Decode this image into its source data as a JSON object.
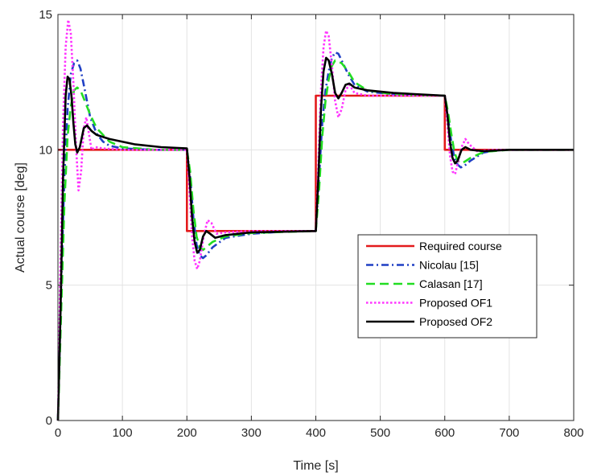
{
  "chart_data": {
    "type": "line",
    "xlabel": "Time [s]",
    "ylabel": "Actual course [deg]",
    "xlim": [
      0,
      800
    ],
    "ylim": [
      0,
      15
    ],
    "xticks": [
      0,
      100,
      200,
      300,
      400,
      500,
      600,
      700,
      800
    ],
    "yticks": [
      0,
      5,
      10,
      15
    ],
    "grid": true,
    "legend_position": "right",
    "series": [
      {
        "name": "Required course",
        "color": "#e31a1c",
        "style": "solid",
        "points": [
          [
            0,
            10
          ],
          [
            200,
            10
          ],
          [
            200,
            7
          ],
          [
            400,
            7
          ],
          [
            400,
            12
          ],
          [
            600,
            12
          ],
          [
            600,
            10
          ],
          [
            800,
            10
          ]
        ]
      },
      {
        "name": "Nicolau [15]",
        "color": "#1f3fc4",
        "style": "dashdot",
        "points": [
          [
            0,
            0
          ],
          [
            5,
            5
          ],
          [
            10,
            9
          ],
          [
            15,
            11.5
          ],
          [
            20,
            12.8
          ],
          [
            25,
            13.2
          ],
          [
            30,
            13.3
          ],
          [
            35,
            13.0
          ],
          [
            40,
            12.4
          ],
          [
            50,
            11.2
          ],
          [
            60,
            10.6
          ],
          [
            70,
            10.3
          ],
          [
            80,
            10.15
          ],
          [
            100,
            10.05
          ],
          [
            150,
            10.0
          ],
          [
            200,
            10.0
          ],
          [
            205,
            9.0
          ],
          [
            210,
            7.5
          ],
          [
            215,
            6.5
          ],
          [
            220,
            6.1
          ],
          [
            225,
            6.0
          ],
          [
            230,
            6.1
          ],
          [
            240,
            6.4
          ],
          [
            260,
            6.75
          ],
          [
            300,
            6.9
          ],
          [
            350,
            6.98
          ],
          [
            400,
            7.0
          ],
          [
            405,
            9
          ],
          [
            410,
            11
          ],
          [
            415,
            12.2
          ],
          [
            420,
            12.9
          ],
          [
            425,
            13.4
          ],
          [
            430,
            13.6
          ],
          [
            435,
            13.55
          ],
          [
            440,
            13.3
          ],
          [
            450,
            12.8
          ],
          [
            460,
            12.4
          ],
          [
            480,
            12.15
          ],
          [
            520,
            12.05
          ],
          [
            600,
            12.0
          ],
          [
            605,
            11.2
          ],
          [
            610,
            10.3
          ],
          [
            615,
            9.7
          ],
          [
            620,
            9.45
          ],
          [
            625,
            9.35
          ],
          [
            630,
            9.4
          ],
          [
            640,
            9.6
          ],
          [
            660,
            9.9
          ],
          [
            680,
            9.98
          ],
          [
            700,
            10.0
          ],
          [
            800,
            10.0
          ]
        ]
      },
      {
        "name": "Calasan [17]",
        "color": "#22dd22",
        "style": "dashed",
        "points": [
          [
            0,
            0
          ],
          [
            5,
            4
          ],
          [
            10,
            8
          ],
          [
            15,
            10.5
          ],
          [
            20,
            11.6
          ],
          [
            25,
            12.2
          ],
          [
            30,
            12.3
          ],
          [
            35,
            12.2
          ],
          [
            40,
            11.9
          ],
          [
            50,
            11.3
          ],
          [
            60,
            10.8
          ],
          [
            80,
            10.3
          ],
          [
            100,
            10.1
          ],
          [
            150,
            10.0
          ],
          [
            200,
            10.0
          ],
          [
            205,
            9.2
          ],
          [
            210,
            7.8
          ],
          [
            215,
            6.8
          ],
          [
            220,
            6.4
          ],
          [
            225,
            6.3
          ],
          [
            230,
            6.4
          ],
          [
            240,
            6.6
          ],
          [
            260,
            6.8
          ],
          [
            300,
            6.93
          ],
          [
            400,
            7.0
          ],
          [
            405,
            8.5
          ],
          [
            410,
            10.5
          ],
          [
            415,
            11.8
          ],
          [
            420,
            12.6
          ],
          [
            425,
            13.1
          ],
          [
            430,
            13.3
          ],
          [
            440,
            13.2
          ],
          [
            450,
            12.9
          ],
          [
            460,
            12.5
          ],
          [
            480,
            12.2
          ],
          [
            520,
            12.05
          ],
          [
            600,
            12.0
          ],
          [
            605,
            11.4
          ],
          [
            610,
            10.6
          ],
          [
            615,
            9.9
          ],
          [
            620,
            9.6
          ],
          [
            625,
            9.5
          ],
          [
            630,
            9.55
          ],
          [
            640,
            9.7
          ],
          [
            660,
            9.92
          ],
          [
            700,
            10.0
          ],
          [
            800,
            10.0
          ]
        ]
      },
      {
        "name": "Proposed OF1",
        "color": "#ff33ff",
        "style": "dotted",
        "points": [
          [
            0,
            0
          ],
          [
            4,
            6
          ],
          [
            8,
            11
          ],
          [
            12,
            13.8
          ],
          [
            16,
            14.8
          ],
          [
            20,
            14.3
          ],
          [
            24,
            12.5
          ],
          [
            28,
            10.2
          ],
          [
            32,
            8.5
          ],
          [
            36,
            9.2
          ],
          [
            40,
            10.8
          ],
          [
            44,
            11.2
          ],
          [
            48,
            10.6
          ],
          [
            52,
            10.0
          ],
          [
            58,
            10.1
          ],
          [
            70,
            10.05
          ],
          [
            100,
            10.0
          ],
          [
            200,
            10.0
          ],
          [
            204,
            8.5
          ],
          [
            208,
            6.8
          ],
          [
            212,
            5.9
          ],
          [
            216,
            5.6
          ],
          [
            220,
            5.9
          ],
          [
            226,
            6.8
          ],
          [
            232,
            7.4
          ],
          [
            238,
            7.3
          ],
          [
            246,
            6.9
          ],
          [
            260,
            6.95
          ],
          [
            300,
            7.0
          ],
          [
            400,
            7.0
          ],
          [
            404,
            9.5
          ],
          [
            408,
            12.2
          ],
          [
            412,
            13.8
          ],
          [
            416,
            14.4
          ],
          [
            420,
            14.2
          ],
          [
            425,
            13.1
          ],
          [
            430,
            11.8
          ],
          [
            435,
            11.2
          ],
          [
            440,
            11.5
          ],
          [
            446,
            12.2
          ],
          [
            452,
            12.4
          ],
          [
            460,
            12.1
          ],
          [
            480,
            12.0
          ],
          [
            600,
            12.0
          ],
          [
            604,
            11.0
          ],
          [
            608,
            9.8
          ],
          [
            612,
            9.2
          ],
          [
            616,
            9.1
          ],
          [
            620,
            9.5
          ],
          [
            626,
            10.1
          ],
          [
            632,
            10.4
          ],
          [
            638,
            10.2
          ],
          [
            650,
            9.95
          ],
          [
            680,
            10.0
          ],
          [
            800,
            10.0
          ]
        ]
      },
      {
        "name": "Proposed OF2",
        "color": "#000000",
        "style": "solid",
        "points": [
          [
            0,
            0
          ],
          [
            4,
            4
          ],
          [
            8,
            9
          ],
          [
            12,
            12
          ],
          [
            15,
            12.7
          ],
          [
            18,
            12.6
          ],
          [
            21,
            12.0
          ],
          [
            24,
            11.0
          ],
          [
            27,
            10.2
          ],
          [
            30,
            9.9
          ],
          [
            34,
            10.1
          ],
          [
            40,
            10.8
          ],
          [
            45,
            10.9
          ],
          [
            52,
            10.7
          ],
          [
            60,
            10.55
          ],
          [
            80,
            10.4
          ],
          [
            120,
            10.2
          ],
          [
            160,
            10.1
          ],
          [
            200,
            10.05
          ],
          [
            204,
            9.0
          ],
          [
            208,
            7.5
          ],
          [
            212,
            6.6
          ],
          [
            216,
            6.2
          ],
          [
            220,
            6.3
          ],
          [
            225,
            6.8
          ],
          [
            230,
            7.0
          ],
          [
            236,
            6.9
          ],
          [
            244,
            6.75
          ],
          [
            260,
            6.85
          ],
          [
            300,
            6.95
          ],
          [
            400,
            7.0
          ],
          [
            404,
            9.0
          ],
          [
            408,
            11.5
          ],
          [
            412,
            12.9
          ],
          [
            416,
            13.4
          ],
          [
            420,
            13.3
          ],
          [
            425,
            12.8
          ],
          [
            430,
            12.1
          ],
          [
            435,
            11.9
          ],
          [
            440,
            12.1
          ],
          [
            446,
            12.4
          ],
          [
            452,
            12.45
          ],
          [
            460,
            12.3
          ],
          [
            480,
            12.2
          ],
          [
            520,
            12.1
          ],
          [
            600,
            12.0
          ],
          [
            604,
            11.3
          ],
          [
            608,
            10.3
          ],
          [
            612,
            9.7
          ],
          [
            616,
            9.5
          ],
          [
            620,
            9.6
          ],
          [
            626,
            10.0
          ],
          [
            632,
            10.1
          ],
          [
            640,
            10.0
          ],
          [
            660,
            9.95
          ],
          [
            700,
            10.0
          ],
          [
            800,
            10.0
          ]
        ]
      }
    ]
  }
}
